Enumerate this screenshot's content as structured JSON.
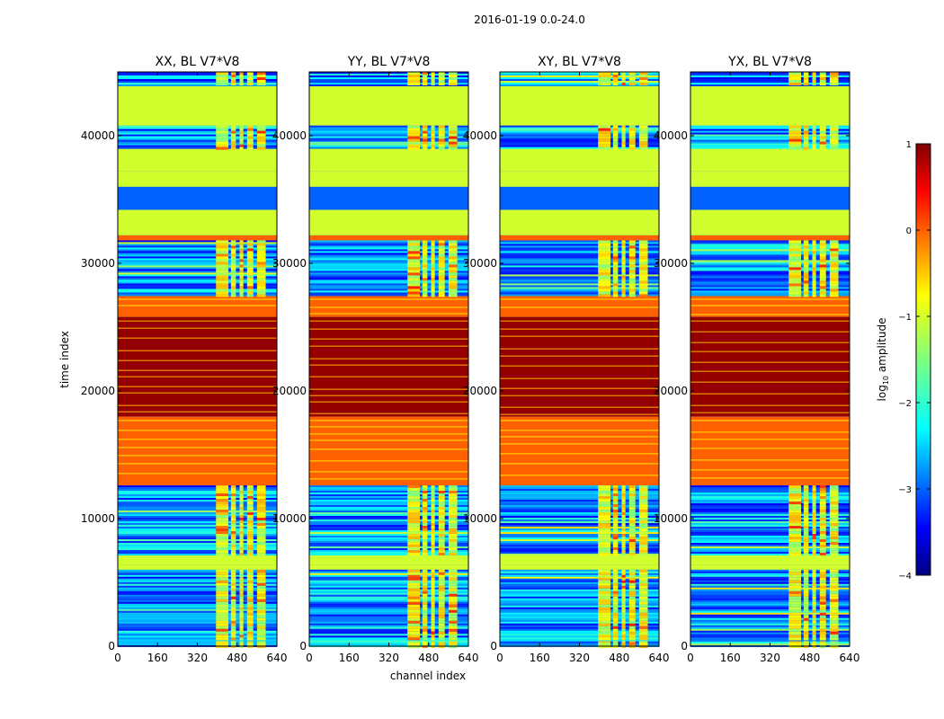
{
  "chart_data": {
    "type": "heatmap",
    "suptitle": "2016-01-19 0.0-24.0",
    "xlabel": "channel index",
    "ylabel": "time index",
    "xlim": [
      0,
      640
    ],
    "ylim": [
      0,
      45000
    ],
    "xticks": [
      0,
      160,
      320,
      480,
      640
    ],
    "yticks": [
      0,
      10000,
      20000,
      30000,
      40000
    ],
    "panels": [
      {
        "title": "XX, BL V7*V8",
        "pol": "XX"
      },
      {
        "title": "YY, BL V7*V8",
        "pol": "YY"
      },
      {
        "title": "XY, BL V7*V8",
        "pol": "XY"
      },
      {
        "title": "YX, BL V7*V8",
        "pol": "YX"
      }
    ],
    "colorbar": {
      "label": "log10 amplitude",
      "label_main": "log",
      "label_sub": "10",
      "label_tail": " amplitude",
      "min": -4,
      "max": 1,
      "ticks": [
        -4,
        -3,
        -2,
        -1,
        0,
        1
      ],
      "tick_labels": [
        "−4",
        "−3",
        "−2",
        "−1",
        "0",
        "1"
      ],
      "colormap": "jet"
    },
    "time_bands": [
      {
        "from": 0,
        "to": 500,
        "kind": "noise"
      },
      {
        "from": 500,
        "to": 1100,
        "kind": "mixed"
      },
      {
        "from": 1100,
        "to": 6000,
        "kind": "noise"
      },
      {
        "from": 6000,
        "to": 6400,
        "kind": "green"
      },
      {
        "from": 6400,
        "to": 7200,
        "kind": "green"
      },
      {
        "from": 7200,
        "to": 12600,
        "kind": "noise"
      },
      {
        "from": 12600,
        "to": 18000,
        "kind": "orange"
      },
      {
        "from": 18000,
        "to": 25800,
        "kind": "darkred"
      },
      {
        "from": 25800,
        "to": 27500,
        "kind": "orange"
      },
      {
        "from": 27500,
        "to": 31800,
        "kind": "noise"
      },
      {
        "from": 31800,
        "to": 32200,
        "kind": "orange"
      },
      {
        "from": 32200,
        "to": 34200,
        "kind": "green"
      },
      {
        "from": 34200,
        "to": 36000,
        "kind": "blue"
      },
      {
        "from": 36000,
        "to": 37200,
        "kind": "green"
      },
      {
        "from": 37200,
        "to": 39000,
        "kind": "green"
      },
      {
        "from": 39000,
        "to": 40800,
        "kind": "noise"
      },
      {
        "from": 40800,
        "to": 44000,
        "kind": "green"
      },
      {
        "from": 44000,
        "to": 45000,
        "kind": "noise"
      }
    ],
    "bright_channel_ranges": [
      [
        395,
        445
      ],
      [
        455,
        475
      ],
      [
        490,
        505
      ],
      [
        520,
        545
      ],
      [
        560,
        595
      ]
    ]
  }
}
